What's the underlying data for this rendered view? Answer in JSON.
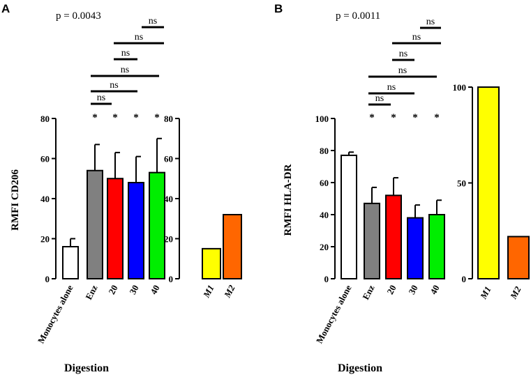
{
  "panels": [
    {
      "letter": "A",
      "p_value": "p = 0.0043",
      "x_axis_label": "Digestion",
      "significance_labels": [
        "ns",
        "ns",
        "ns",
        "ns",
        "ns",
        "ns"
      ],
      "significance_stars": [
        "*",
        "*",
        "*",
        "*"
      ]
    },
    {
      "letter": "B",
      "p_value": "p = 0.0011",
      "x_axis_label": "Digestion",
      "significance_labels": [
        "ns",
        "ns",
        "ns",
        "ns",
        "ns",
        "ns"
      ],
      "significance_stars": [
        "*",
        "*",
        "*",
        "*"
      ]
    }
  ],
  "chart_data": [
    {
      "type": "bar",
      "panel": "A",
      "ylabel": "RMFI CD206",
      "xlabel": "Digestion",
      "categories": [
        "Monocytes alone",
        "Enz",
        "20",
        "30",
        "40"
      ],
      "values": [
        16,
        54,
        50,
        48,
        53
      ],
      "error": [
        4,
        13,
        13,
        13,
        17
      ],
      "colors": [
        "#ffffff",
        "#808080",
        "#ff0000",
        "#0000ff",
        "#00ee00"
      ],
      "ylim": [
        0,
        80
      ],
      "yticks": [
        0,
        20,
        40,
        60,
        80
      ],
      "annotation": "p = 0.0043",
      "comparisons": [
        "Enz vs 20: ns",
        "Enz vs 30: ns",
        "Enz vs 40: ns",
        "20 vs 30: ns",
        "20 vs 40: ns",
        "30 vs 40: ns"
      ]
    },
    {
      "type": "bar",
      "panel": "A-inset",
      "categories": [
        "M1",
        "M2"
      ],
      "values": [
        15,
        32
      ],
      "colors": [
        "#ffff00",
        "#ff6600"
      ],
      "ylim": [
        0,
        80
      ],
      "yticks": [
        0,
        20,
        40,
        60,
        80
      ]
    },
    {
      "type": "bar",
      "panel": "B",
      "ylabel": "RMFI HLA-DR",
      "xlabel": "Digestion",
      "categories": [
        "Monocytes alone",
        "Enz",
        "20",
        "30",
        "40"
      ],
      "values": [
        77,
        47,
        52,
        38,
        40
      ],
      "error": [
        2,
        10,
        11,
        8,
        9
      ],
      "colors": [
        "#ffffff",
        "#808080",
        "#ff0000",
        "#0000ff",
        "#00ee00"
      ],
      "ylim": [
        0,
        100
      ],
      "yticks": [
        0,
        20,
        40,
        60,
        80,
        100
      ],
      "annotation": "p = 0.0011",
      "comparisons": [
        "Enz vs 20: ns",
        "Enz vs 30: ns",
        "Enz vs 40: ns",
        "20 vs 30: ns",
        "20 vs 40: ns",
        "30 vs 40: ns"
      ]
    },
    {
      "type": "bar",
      "panel": "B-inset",
      "categories": [
        "M1",
        "M2"
      ],
      "values": [
        100,
        22
      ],
      "colors": [
        "#ffff00",
        "#ff6600"
      ],
      "ylim": [
        0,
        100
      ],
      "yticks": [
        0,
        50,
        100
      ]
    }
  ]
}
